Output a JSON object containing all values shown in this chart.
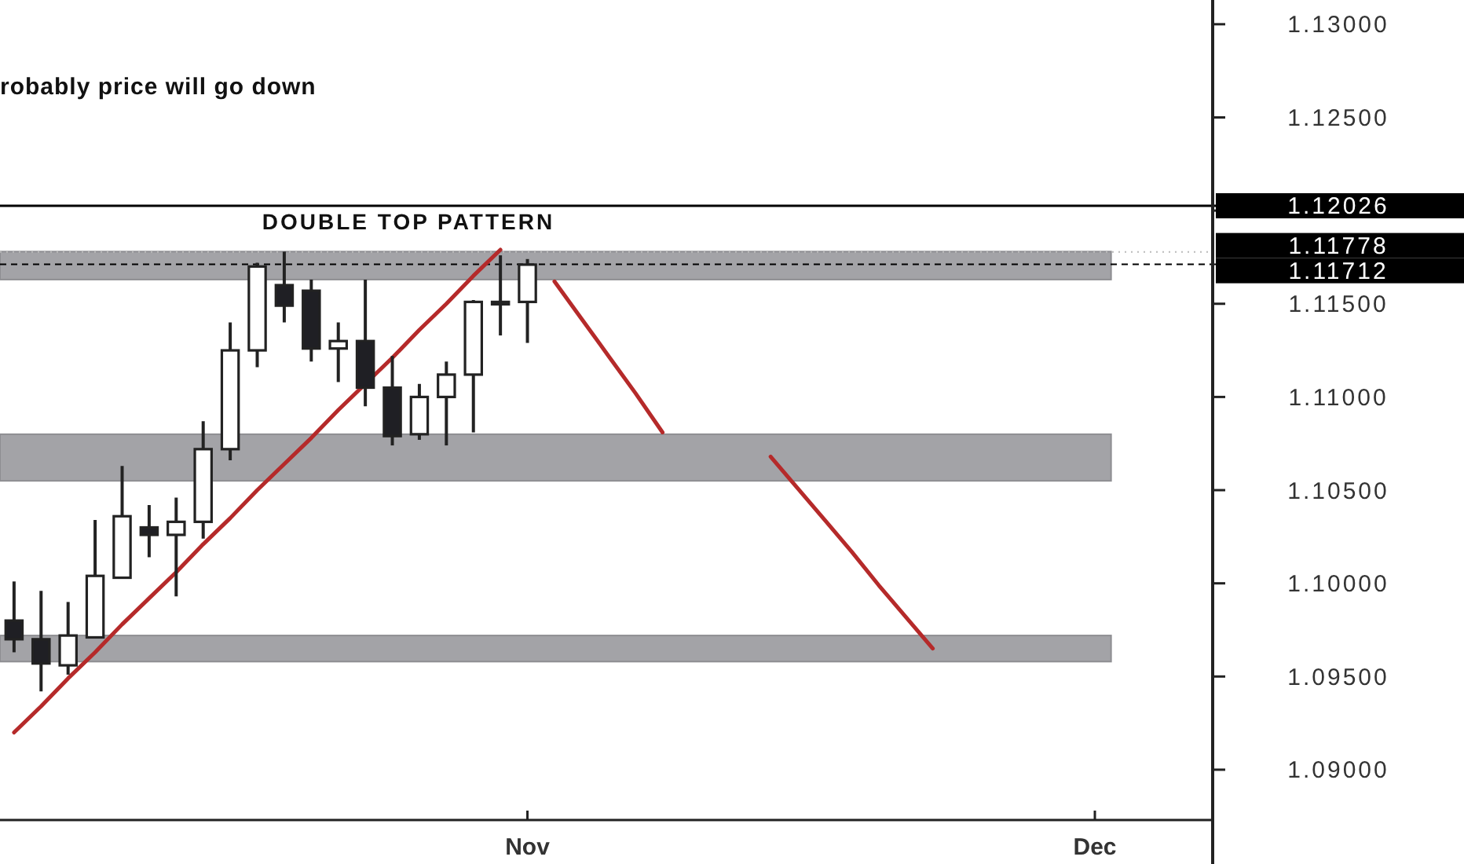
{
  "chart_data": {
    "type": "candlestick",
    "annotations": [
      "robably price will go down",
      "DOUBLE TOP PATTERN"
    ],
    "categories": [
      null,
      null,
      null,
      null,
      null,
      null,
      null,
      null,
      null,
      null,
      null,
      null,
      null,
      null,
      null,
      null,
      null,
      null,
      null,
      "Nov",
      null,
      null,
      null,
      null,
      null,
      null,
      null,
      null,
      null,
      null,
      null,
      null,
      null,
      null,
      null,
      null,
      null,
      null,
      null,
      null,
      "Dec",
      null,
      null,
      null
    ],
    "ohlc": [
      [
        1.098,
        1.1001,
        1.0963,
        1.097
      ],
      [
        1.097,
        1.0996,
        1.0942,
        1.0957
      ],
      [
        1.0956,
        1.099,
        1.0951,
        1.0972
      ],
      [
        1.0971,
        1.1034,
        1.0971,
        1.1004
      ],
      [
        1.1003,
        1.1063,
        1.1003,
        1.1036
      ],
      [
        1.103,
        1.1042,
        1.1014,
        1.1026
      ],
      [
        1.1026,
        1.1046,
        1.0993,
        1.1033
      ],
      [
        1.1033,
        1.1087,
        1.1024,
        1.1072
      ],
      [
        1.1072,
        1.114,
        1.1066,
        1.1125
      ],
      [
        1.1125,
        1.1172,
        1.1116,
        1.117
      ],
      [
        1.116,
        1.1178,
        1.114,
        1.1149
      ],
      [
        1.1157,
        1.1163,
        1.1119,
        1.1126
      ],
      [
        1.1126,
        1.114,
        1.1108,
        1.113
      ],
      [
        1.113,
        1.1163,
        1.1095,
        1.1105
      ],
      [
        1.1105,
        1.1122,
        1.1074,
        1.1079
      ],
      [
        1.108,
        1.1107,
        1.1077,
        1.11
      ],
      [
        1.11,
        1.1119,
        1.1074,
        1.1112
      ],
      [
        1.1112,
        1.1152,
        1.1081,
        1.1151
      ],
      [
        1.1151,
        1.1176,
        1.1133,
        1.1151
      ],
      [
        1.1151,
        1.1174,
        1.1129,
        1.1171
      ],
      null,
      null,
      null,
      null,
      null,
      null,
      null,
      null,
      null,
      null,
      null,
      null,
      null,
      null,
      null,
      null,
      null,
      null,
      null,
      null,
      null,
      null,
      null,
      null
    ],
    "series": [
      {
        "type": "line",
        "color": "#b52a2a",
        "values": [
          1.092,
          1.0934,
          1.0949,
          1.0963,
          1.0978,
          1.0992,
          1.1006,
          1.1021,
          1.1035,
          1.105,
          1.1064,
          1.1078,
          1.1093,
          1.1107,
          1.1121,
          1.1136,
          1.115,
          1.1165,
          1.1179,
          null,
          null,
          null,
          null,
          null,
          null,
          null,
          null,
          null,
          null,
          null,
          null,
          null,
          null,
          null,
          null,
          null,
          null,
          null,
          null,
          null,
          null,
          null,
          null,
          null
        ]
      },
      {
        "type": "line",
        "color": "#b52a2a",
        "values": [
          null,
          null,
          null,
          null,
          null,
          null,
          null,
          null,
          null,
          null,
          null,
          null,
          null,
          null,
          null,
          null,
          null,
          null,
          null,
          null,
          1.1162,
          1.1142,
          1.1122,
          1.1102,
          1.1081,
          null,
          null,
          null,
          null,
          null,
          null,
          null,
          null,
          null,
          null,
          null,
          null,
          null,
          null,
          null,
          null,
          null,
          null,
          null
        ]
      },
      {
        "type": "line",
        "color": "#b52a2a",
        "values": [
          null,
          null,
          null,
          null,
          null,
          null,
          null,
          null,
          null,
          null,
          null,
          null,
          null,
          null,
          null,
          null,
          null,
          null,
          null,
          null,
          null,
          null,
          null,
          null,
          null,
          null,
          null,
          null,
          1.1068,
          1.1051,
          1.1034,
          1.1017,
          1.0999,
          1.0982,
          1.0965,
          null,
          null,
          null,
          null,
          null,
          null,
          null,
          null,
          null
        ]
      }
    ],
    "ylim": [
      1.0873,
      1.1313
    ],
    "yticks": [
      {
        "value": 1.09,
        "label": "1.09000"
      },
      {
        "value": 1.095,
        "label": "1.09500"
      },
      {
        "value": 1.1,
        "label": "1.10000"
      },
      {
        "value": 1.105,
        "label": "1.10500"
      },
      {
        "value": 1.11,
        "label": "1.11000"
      },
      {
        "value": 1.115,
        "label": "1.11500"
      },
      {
        "value": 1.12,
        "label": null
      },
      {
        "value": 1.125,
        "label": "1.12500"
      },
      {
        "value": 1.13,
        "label": "1.13000"
      }
    ],
    "ref_lines": [
      {
        "axis": "y",
        "value": 1.12026,
        "label": "1.12026",
        "color": "#000000",
        "line_style": "solid"
      },
      {
        "axis": "y",
        "value": 1.11778,
        "label": "1.11778",
        "color": "#bbbbbb",
        "line_style": "dotted"
      },
      {
        "axis": "y",
        "value": 1.11712,
        "label": "1.11712",
        "color": "#000000",
        "line_style": "dashed"
      }
    ],
    "bands": [
      {
        "axis": "y",
        "from": 1.1163,
        "to": 1.1178,
        "color": "#a3a3a7"
      },
      {
        "axis": "y",
        "from": 1.1055,
        "to": 1.108,
        "color": "#a3a3a7"
      },
      {
        "axis": "y",
        "from": 1.0958,
        "to": 1.0972,
        "color": "#a3a3a7"
      }
    ]
  }
}
